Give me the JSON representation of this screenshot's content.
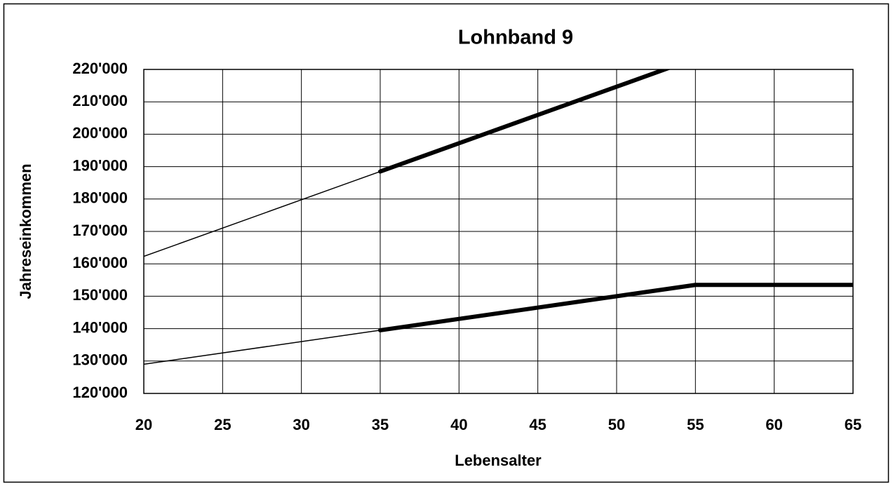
{
  "chart_data": {
    "type": "line",
    "title": "Lohnband 9",
    "xlabel": "Lebensalter",
    "ylabel": "Jahreseinkommen",
    "xlim": [
      20,
      65
    ],
    "xticks": [
      20,
      25,
      30,
      35,
      40,
      45,
      50,
      55,
      60,
      65
    ],
    "ylim": [
      120000,
      220000
    ],
    "yticks": [
      {
        "value": 120000,
        "label": "120'000"
      },
      {
        "value": 130000,
        "label": "130'000"
      },
      {
        "value": 140000,
        "label": "140'000"
      },
      {
        "value": 150000,
        "label": "150'000"
      },
      {
        "value": 160000,
        "label": "160'000"
      },
      {
        "value": 170000,
        "label": "170'000"
      },
      {
        "value": 180000,
        "label": "180'000"
      },
      {
        "value": 190000,
        "label": "190'000"
      },
      {
        "value": 200000,
        "label": "200'000"
      },
      {
        "value": 210000,
        "label": "210'000"
      },
      {
        "value": 220000,
        "label": "220'000"
      }
    ],
    "grid": true,
    "series": [
      {
        "color": "#000000",
        "width": 1.5,
        "x": [
          20,
          35
        ],
        "values": [
          162300,
          188500
        ]
      },
      {
        "color": "#000000",
        "width": 6,
        "x": [
          35,
          55
        ],
        "values": [
          188500,
          223400
        ]
      },
      {
        "color": "#000000",
        "width": 1.5,
        "x": [
          20,
          35
        ],
        "values": [
          129000,
          139500
        ]
      },
      {
        "color": "#000000",
        "width": 6,
        "x": [
          35,
          55,
          65
        ],
        "values": [
          139500,
          153500,
          153500
        ]
      }
    ]
  }
}
